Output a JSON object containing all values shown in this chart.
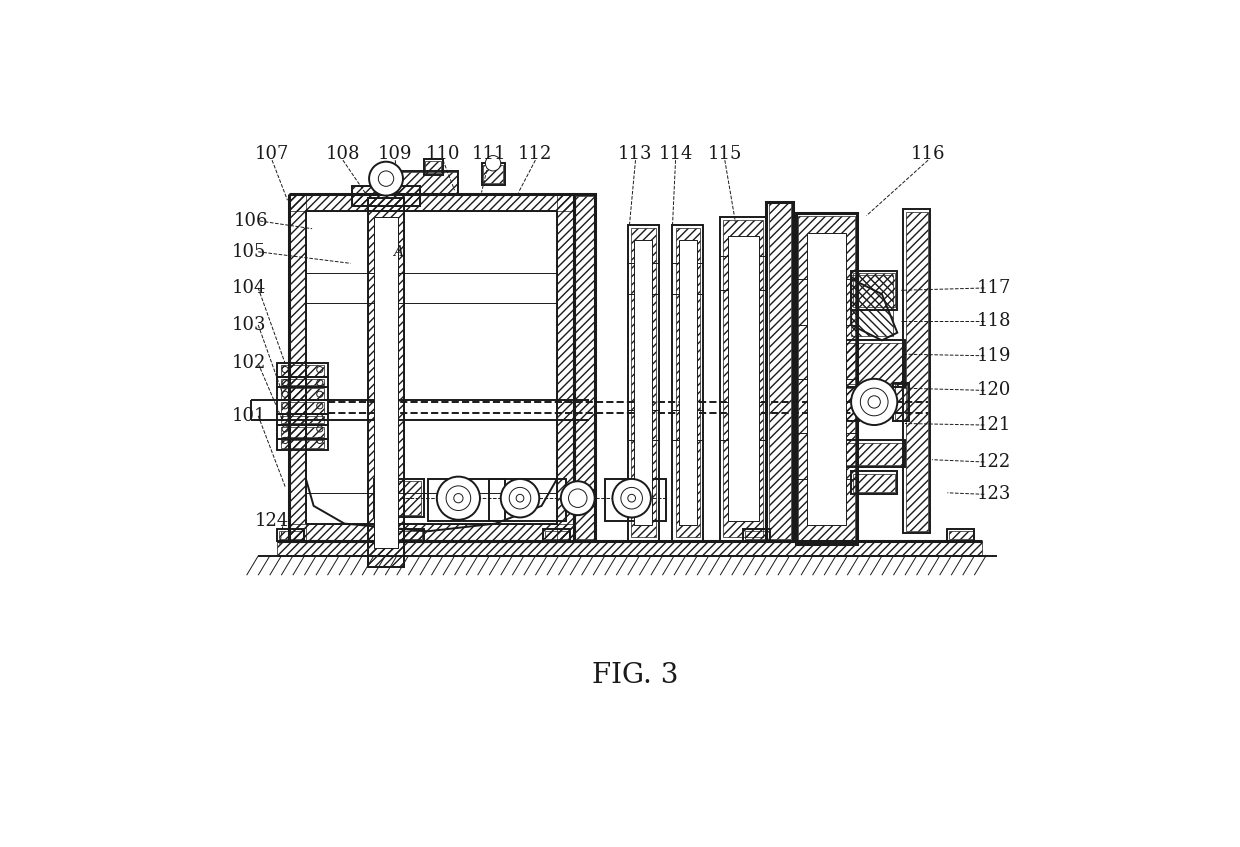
{
  "title": "FIG. 3",
  "title_fontsize": 20,
  "bg_color": "#ffffff",
  "line_color": "#1a1a1a",
  "fig_width": 12.4,
  "fig_height": 8.47,
  "label_fontsize": 13
}
